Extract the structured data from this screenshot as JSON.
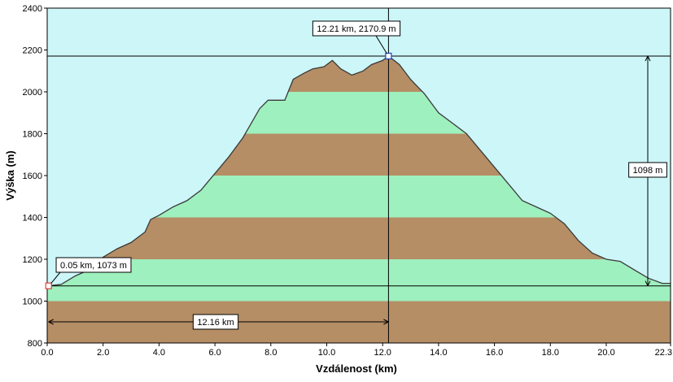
{
  "chart_data": {
    "type": "area",
    "xlabel": "Vzdálenost  (km)",
    "ylabel": "Výška (m)",
    "xlim": [
      0,
      22.3
    ],
    "ylim": [
      800,
      2400
    ],
    "x_ticks": [
      "0.0",
      "2.0",
      "4.0",
      "6.0",
      "8.0",
      "10.0",
      "12.0",
      "14.0",
      "16.0",
      "18.0",
      "20.0",
      "22.3"
    ],
    "y_ticks": [
      "800",
      "1000",
      "1200",
      "1400",
      "1600",
      "1800",
      "2000",
      "2200",
      "2400"
    ],
    "band_colors": [
      "#b58e66",
      "#9ef0be"
    ],
    "sky_color": "#ccf6f8",
    "profile": [
      [
        0.05,
        1073
      ],
      [
        0.5,
        1080
      ],
      [
        1.0,
        1120
      ],
      [
        1.5,
        1150
      ],
      [
        2.0,
        1210
      ],
      [
        2.5,
        1250
      ],
      [
        3.0,
        1280
      ],
      [
        3.5,
        1330
      ],
      [
        3.7,
        1390
      ],
      [
        4.0,
        1410
      ],
      [
        4.5,
        1450
      ],
      [
        5.0,
        1480
      ],
      [
        5.5,
        1530
      ],
      [
        6.0,
        1610
      ],
      [
        6.5,
        1690
      ],
      [
        7.0,
        1780
      ],
      [
        7.3,
        1850
      ],
      [
        7.6,
        1920
      ],
      [
        7.9,
        1960
      ],
      [
        8.5,
        1960
      ],
      [
        8.8,
        2060
      ],
      [
        9.2,
        2090
      ],
      [
        9.5,
        2110
      ],
      [
        9.9,
        2120
      ],
      [
        10.2,
        2150
      ],
      [
        10.5,
        2110
      ],
      [
        10.9,
        2080
      ],
      [
        11.3,
        2100
      ],
      [
        11.6,
        2130
      ],
      [
        12.0,
        2150
      ],
      [
        12.21,
        2170.9
      ],
      [
        12.6,
        2130
      ],
      [
        13.0,
        2060
      ],
      [
        13.5,
        1990
      ],
      [
        14.0,
        1900
      ],
      [
        14.5,
        1850
      ],
      [
        15.0,
        1800
      ],
      [
        15.5,
        1720
      ],
      [
        16.0,
        1640
      ],
      [
        16.5,
        1560
      ],
      [
        17.0,
        1480
      ],
      [
        17.5,
        1450
      ],
      [
        18.0,
        1420
      ],
      [
        18.5,
        1370
      ],
      [
        19.0,
        1290
      ],
      [
        19.5,
        1230
      ],
      [
        20.0,
        1200
      ],
      [
        20.5,
        1190
      ],
      [
        21.0,
        1150
      ],
      [
        21.5,
        1110
      ],
      [
        22.0,
        1085
      ],
      [
        22.3,
        1085
      ]
    ],
    "start_marker": {
      "x": 0.05,
      "y": 1073,
      "label": "0.05 km, 1073 m"
    },
    "peak_marker": {
      "x": 12.21,
      "y": 2170.9,
      "label": "12.21 km, 2170.9 m"
    },
    "distance_label": "12.16 km",
    "elevation_gain_label": "1098 m",
    "colors": {
      "start_marker": "#e04040",
      "peak_marker": "#2040c0",
      "profile_line": "#3a3a3a"
    }
  }
}
